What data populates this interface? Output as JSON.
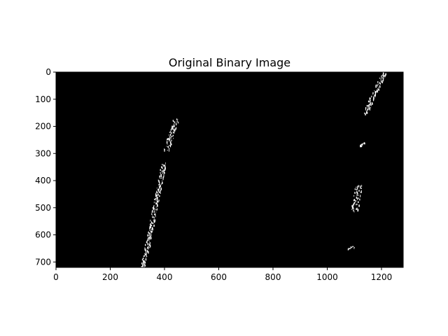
{
  "chart_data": {
    "type": "heatmap",
    "title": "Original Binary Image",
    "xlabel": "",
    "ylabel": "",
    "colormap": "gray",
    "background_color": "#000000",
    "pixel_on_color": "#ffffff",
    "xlim": [
      0,
      1280
    ],
    "ylim": [
      720,
      0
    ],
    "x_ticks": [
      0,
      200,
      400,
      600,
      800,
      1000,
      1200
    ],
    "y_ticks": [
      0,
      100,
      200,
      300,
      400,
      500,
      600,
      700
    ],
    "grid": false,
    "legend": "none",
    "features": [
      {
        "name": "left-lane-lower",
        "points": [
          [
            320,
            720
          ],
          [
            336,
            640
          ],
          [
            352,
            560
          ],
          [
            368,
            480
          ],
          [
            384,
            400
          ],
          [
            398,
            330
          ]
        ],
        "width": 18
      },
      {
        "name": "left-lane-upper-blobs",
        "points": [
          [
            405,
            290
          ],
          [
            415,
            260
          ],
          [
            425,
            230
          ],
          [
            435,
            200
          ],
          [
            442,
            170
          ]
        ],
        "width": 22
      },
      {
        "name": "right-lane-top",
        "points": [
          [
            1140,
            150
          ],
          [
            1165,
            90
          ],
          [
            1190,
            40
          ],
          [
            1210,
            0
          ]
        ],
        "width": 18
      },
      {
        "name": "right-lane-dash",
        "points": [
          [
            1120,
            270
          ],
          [
            1135,
            258
          ]
        ],
        "width": 6
      },
      {
        "name": "right-lane-middle",
        "points": [
          [
            1100,
            510
          ],
          [
            1108,
            460
          ],
          [
            1115,
            410
          ]
        ],
        "width": 26
      },
      {
        "name": "right-lane-bottom-speck",
        "points": [
          [
            1075,
            648
          ],
          [
            1100,
            642
          ]
        ],
        "width": 4
      }
    ]
  }
}
